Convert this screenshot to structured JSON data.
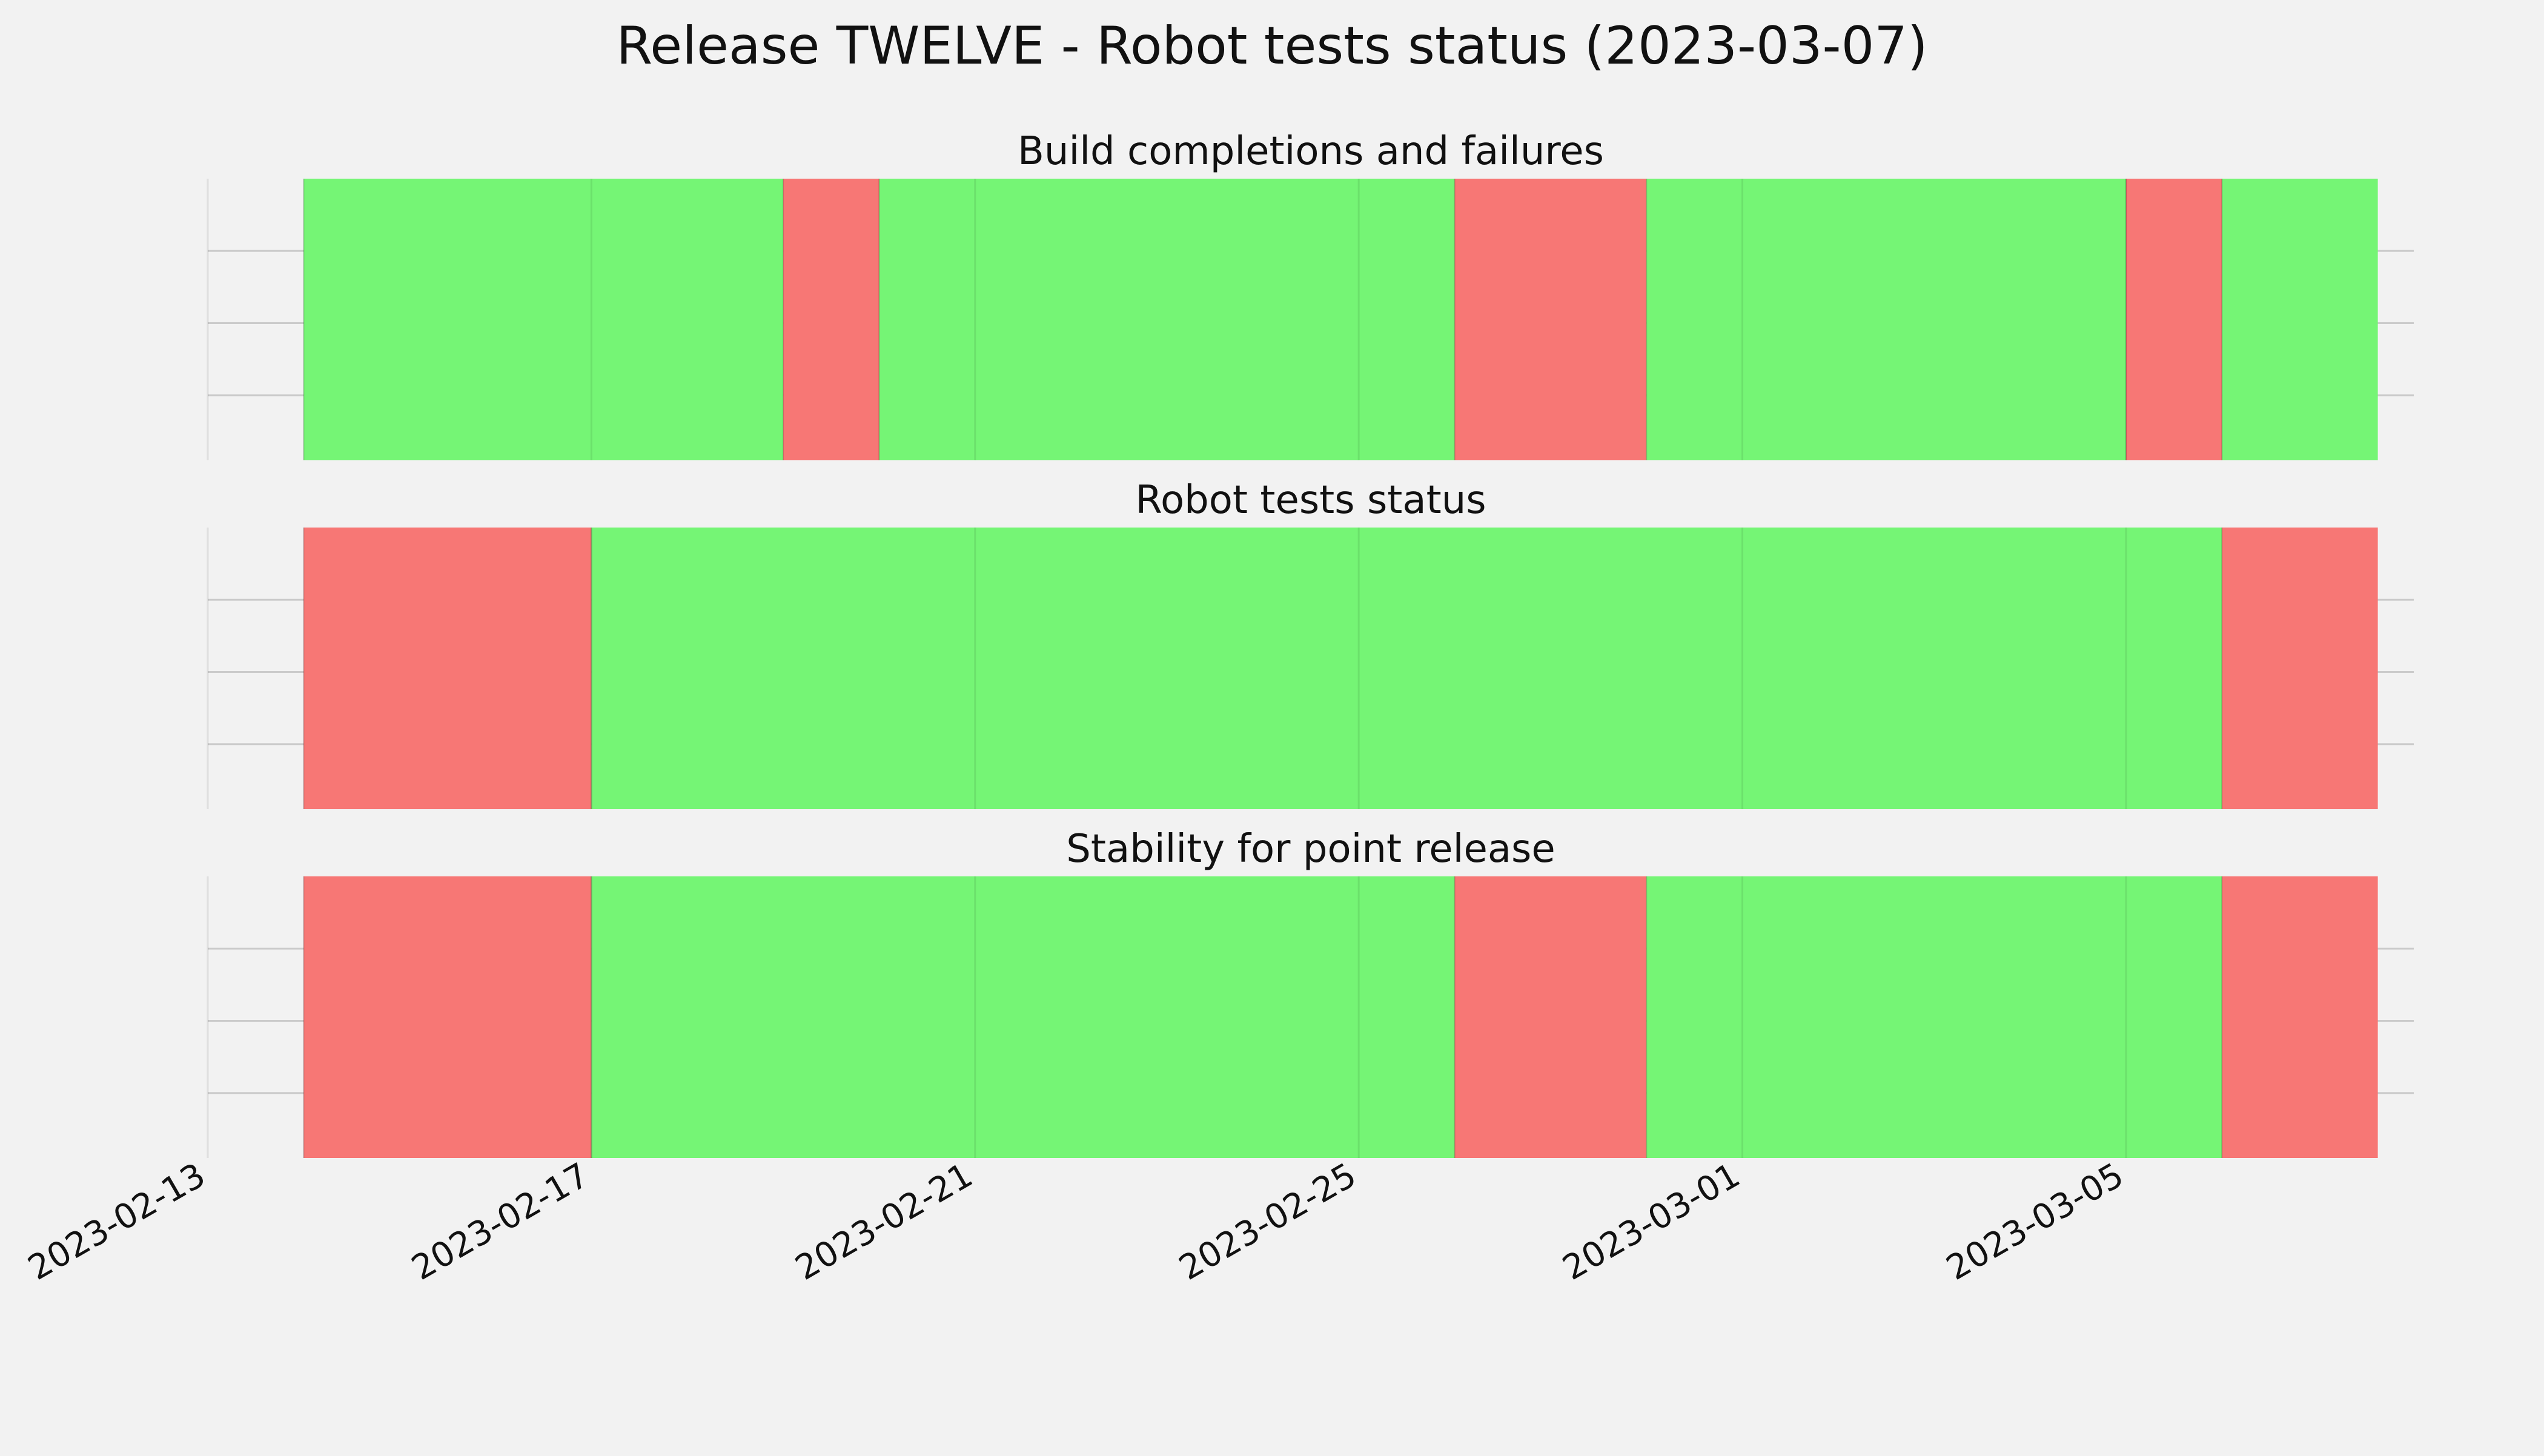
{
  "chart_data": {
    "type": "timeline",
    "title": "Release TWELVE - Robot tests status (2023-03-07)",
    "x_range": [
      "2023-02-13",
      "2023-03-08"
    ],
    "x_ticks": [
      "2023-02-13",
      "2023-02-17",
      "2023-02-21",
      "2023-02-25",
      "2023-03-01",
      "2023-03-05"
    ],
    "grid": true,
    "colors": {
      "pass": "#75f575",
      "fail": "#f77775",
      "background": "#f2f2f2",
      "grid": "#cbcbcb"
    },
    "panels": [
      {
        "title": "Build completions and failures",
        "segments": [
          {
            "start": "2023-02-14",
            "end": "2023-02-19",
            "status": "pass"
          },
          {
            "start": "2023-02-19",
            "end": "2023-02-20",
            "status": "fail"
          },
          {
            "start": "2023-02-20",
            "end": "2023-02-26",
            "status": "pass"
          },
          {
            "start": "2023-02-26",
            "end": "2023-02-28",
            "status": "fail"
          },
          {
            "start": "2023-02-28",
            "end": "2023-03-05",
            "status": "pass"
          },
          {
            "start": "2023-03-05",
            "end": "2023-03-06",
            "status": "fail"
          },
          {
            "start": "2023-03-06",
            "end": "2023-03-07 15:00",
            "status": "pass"
          }
        ]
      },
      {
        "title": "Robot tests status",
        "segments": [
          {
            "start": "2023-02-14",
            "end": "2023-02-17",
            "status": "fail"
          },
          {
            "start": "2023-02-17",
            "end": "2023-03-06",
            "status": "pass"
          },
          {
            "start": "2023-03-06",
            "end": "2023-03-07 15:00",
            "status": "fail"
          }
        ]
      },
      {
        "title": "Stability for point release",
        "segments": [
          {
            "start": "2023-02-14",
            "end": "2023-02-17",
            "status": "fail"
          },
          {
            "start": "2023-02-17",
            "end": "2023-02-26",
            "status": "pass"
          },
          {
            "start": "2023-02-26",
            "end": "2023-02-28",
            "status": "fail"
          },
          {
            "start": "2023-02-28",
            "end": "2023-03-06",
            "status": "pass"
          },
          {
            "start": "2023-03-06",
            "end": "2023-03-07 15:00",
            "status": "fail"
          }
        ]
      }
    ]
  }
}
